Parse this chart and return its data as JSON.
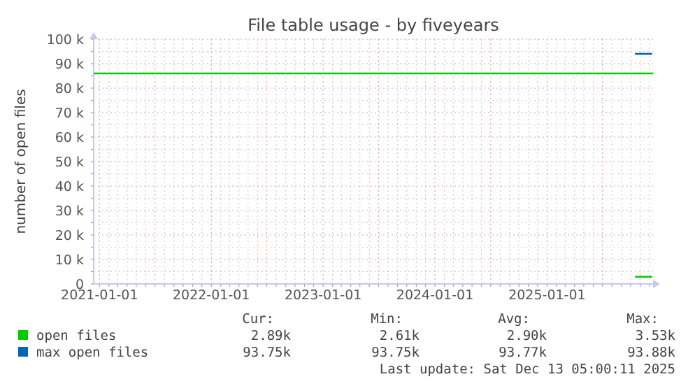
{
  "chart_data": {
    "type": "line",
    "title": "File table usage - by fiveyears",
    "ylabel": "number of open files",
    "xlim": [
      "2020-12-13",
      "2025-12-13"
    ],
    "xticks": [
      {
        "value": "2021-01-01",
        "label": "2021-01-01"
      },
      {
        "value": "2021-02-01",
        "label": null
      },
      {
        "value": "2021-03-01",
        "label": null
      },
      {
        "value": "2021-04-01",
        "label": null
      },
      {
        "value": "2021-05-01",
        "label": null
      },
      {
        "value": "2021-06-01",
        "label": null
      },
      {
        "value": "2021-07-01",
        "label": null
      },
      {
        "value": "2021-08-01",
        "label": null
      },
      {
        "value": "2021-09-01",
        "label": null
      },
      {
        "value": "2021-10-01",
        "label": null
      },
      {
        "value": "2021-11-01",
        "label": null
      },
      {
        "value": "2021-12-01",
        "label": null
      },
      {
        "value": "2022-01-01",
        "label": "2022-01-01"
      },
      {
        "value": "2022-02-01",
        "label": null
      },
      {
        "value": "2022-03-01",
        "label": null
      },
      {
        "value": "2022-04-01",
        "label": null
      },
      {
        "value": "2022-05-01",
        "label": null
      },
      {
        "value": "2022-06-01",
        "label": null
      },
      {
        "value": "2022-07-01",
        "label": null
      },
      {
        "value": "2022-08-01",
        "label": null
      },
      {
        "value": "2022-09-01",
        "label": null
      },
      {
        "value": "2022-10-01",
        "label": null
      },
      {
        "value": "2022-11-01",
        "label": null
      },
      {
        "value": "2022-12-01",
        "label": null
      },
      {
        "value": "2023-01-01",
        "label": "2023-01-01"
      },
      {
        "value": "2023-02-01",
        "label": null
      },
      {
        "value": "2023-03-01",
        "label": null
      },
      {
        "value": "2023-04-01",
        "label": null
      },
      {
        "value": "2023-05-01",
        "label": null
      },
      {
        "value": "2023-06-01",
        "label": null
      },
      {
        "value": "2023-07-01",
        "label": null
      },
      {
        "value": "2023-08-01",
        "label": null
      },
      {
        "value": "2023-09-01",
        "label": null
      },
      {
        "value": "2023-10-01",
        "label": null
      },
      {
        "value": "2023-11-01",
        "label": null
      },
      {
        "value": "2023-12-01",
        "label": null
      },
      {
        "value": "2024-01-01",
        "label": "2024-01-01"
      },
      {
        "value": "2024-02-01",
        "label": null
      },
      {
        "value": "2024-03-01",
        "label": null
      },
      {
        "value": "2024-04-01",
        "label": null
      },
      {
        "value": "2024-05-01",
        "label": null
      },
      {
        "value": "2024-06-01",
        "label": null
      },
      {
        "value": "2024-07-01",
        "label": null
      },
      {
        "value": "2024-08-01",
        "label": null
      },
      {
        "value": "2024-09-01",
        "label": null
      },
      {
        "value": "2024-10-01",
        "label": null
      },
      {
        "value": "2024-11-01",
        "label": null
      },
      {
        "value": "2024-12-01",
        "label": null
      },
      {
        "value": "2025-01-01",
        "label": "2025-01-01"
      },
      {
        "value": "2025-02-01",
        "label": null
      },
      {
        "value": "2025-03-01",
        "label": null
      },
      {
        "value": "2025-04-01",
        "label": null
      },
      {
        "value": "2025-05-01",
        "label": null
      },
      {
        "value": "2025-06-01",
        "label": null
      },
      {
        "value": "2025-07-01",
        "label": null
      },
      {
        "value": "2025-08-01",
        "label": null
      },
      {
        "value": "2025-09-01",
        "label": null
      },
      {
        "value": "2025-10-01",
        "label": null
      },
      {
        "value": "2025-11-01",
        "label": null
      },
      {
        "value": "2025-12-01",
        "label": null
      }
    ],
    "ylim": [
      0,
      100000
    ],
    "yticks": [
      {
        "value": 0,
        "label": "0"
      },
      {
        "value": 5000,
        "label": null
      },
      {
        "value": 10000,
        "label": "10 k"
      },
      {
        "value": 15000,
        "label": null
      },
      {
        "value": 20000,
        "label": "20 k"
      },
      {
        "value": 25000,
        "label": null
      },
      {
        "value": 30000,
        "label": "30 k"
      },
      {
        "value": 35000,
        "label": null
      },
      {
        "value": 40000,
        "label": "40 k"
      },
      {
        "value": 45000,
        "label": null
      },
      {
        "value": 50000,
        "label": "50 k"
      },
      {
        "value": 55000,
        "label": null
      },
      {
        "value": 60000,
        "label": "60 k"
      },
      {
        "value": 65000,
        "label": null
      },
      {
        "value": 70000,
        "label": "70 k"
      },
      {
        "value": 75000,
        "label": null
      },
      {
        "value": 80000,
        "label": "80 k"
      },
      {
        "value": 85000,
        "label": null
      },
      {
        "value": 90000,
        "label": "90 k"
      },
      {
        "value": 95000,
        "label": null
      },
      {
        "value": 100000,
        "label": "100 k"
      }
    ],
    "grid": true,
    "legend": "bottom",
    "series": [
      {
        "name": "open files",
        "color": "#00cc00",
        "x": [
          "2025-10-15",
          "2025-12-10"
        ],
        "values": [
          2900,
          2900
        ]
      },
      {
        "name": "max open files",
        "color": "#0066b3",
        "x": [
          "2025-10-15",
          "2025-12-10"
        ],
        "values": [
          94000,
          94000
        ]
      }
    ],
    "ref_lines": [
      {
        "axis": "y",
        "value": 86000,
        "color": "#00cc00"
      }
    ],
    "annotations": [
      "Cur:",
      "Min:",
      "Avg:",
      "Max:",
      "2.89k",
      "2.61k",
      "2.90k",
      "3.53k",
      "93.75k",
      "93.75k",
      "93.77k",
      "93.88k",
      "Last update: Sat Dec 13 05:00:11 2025"
    ]
  }
}
